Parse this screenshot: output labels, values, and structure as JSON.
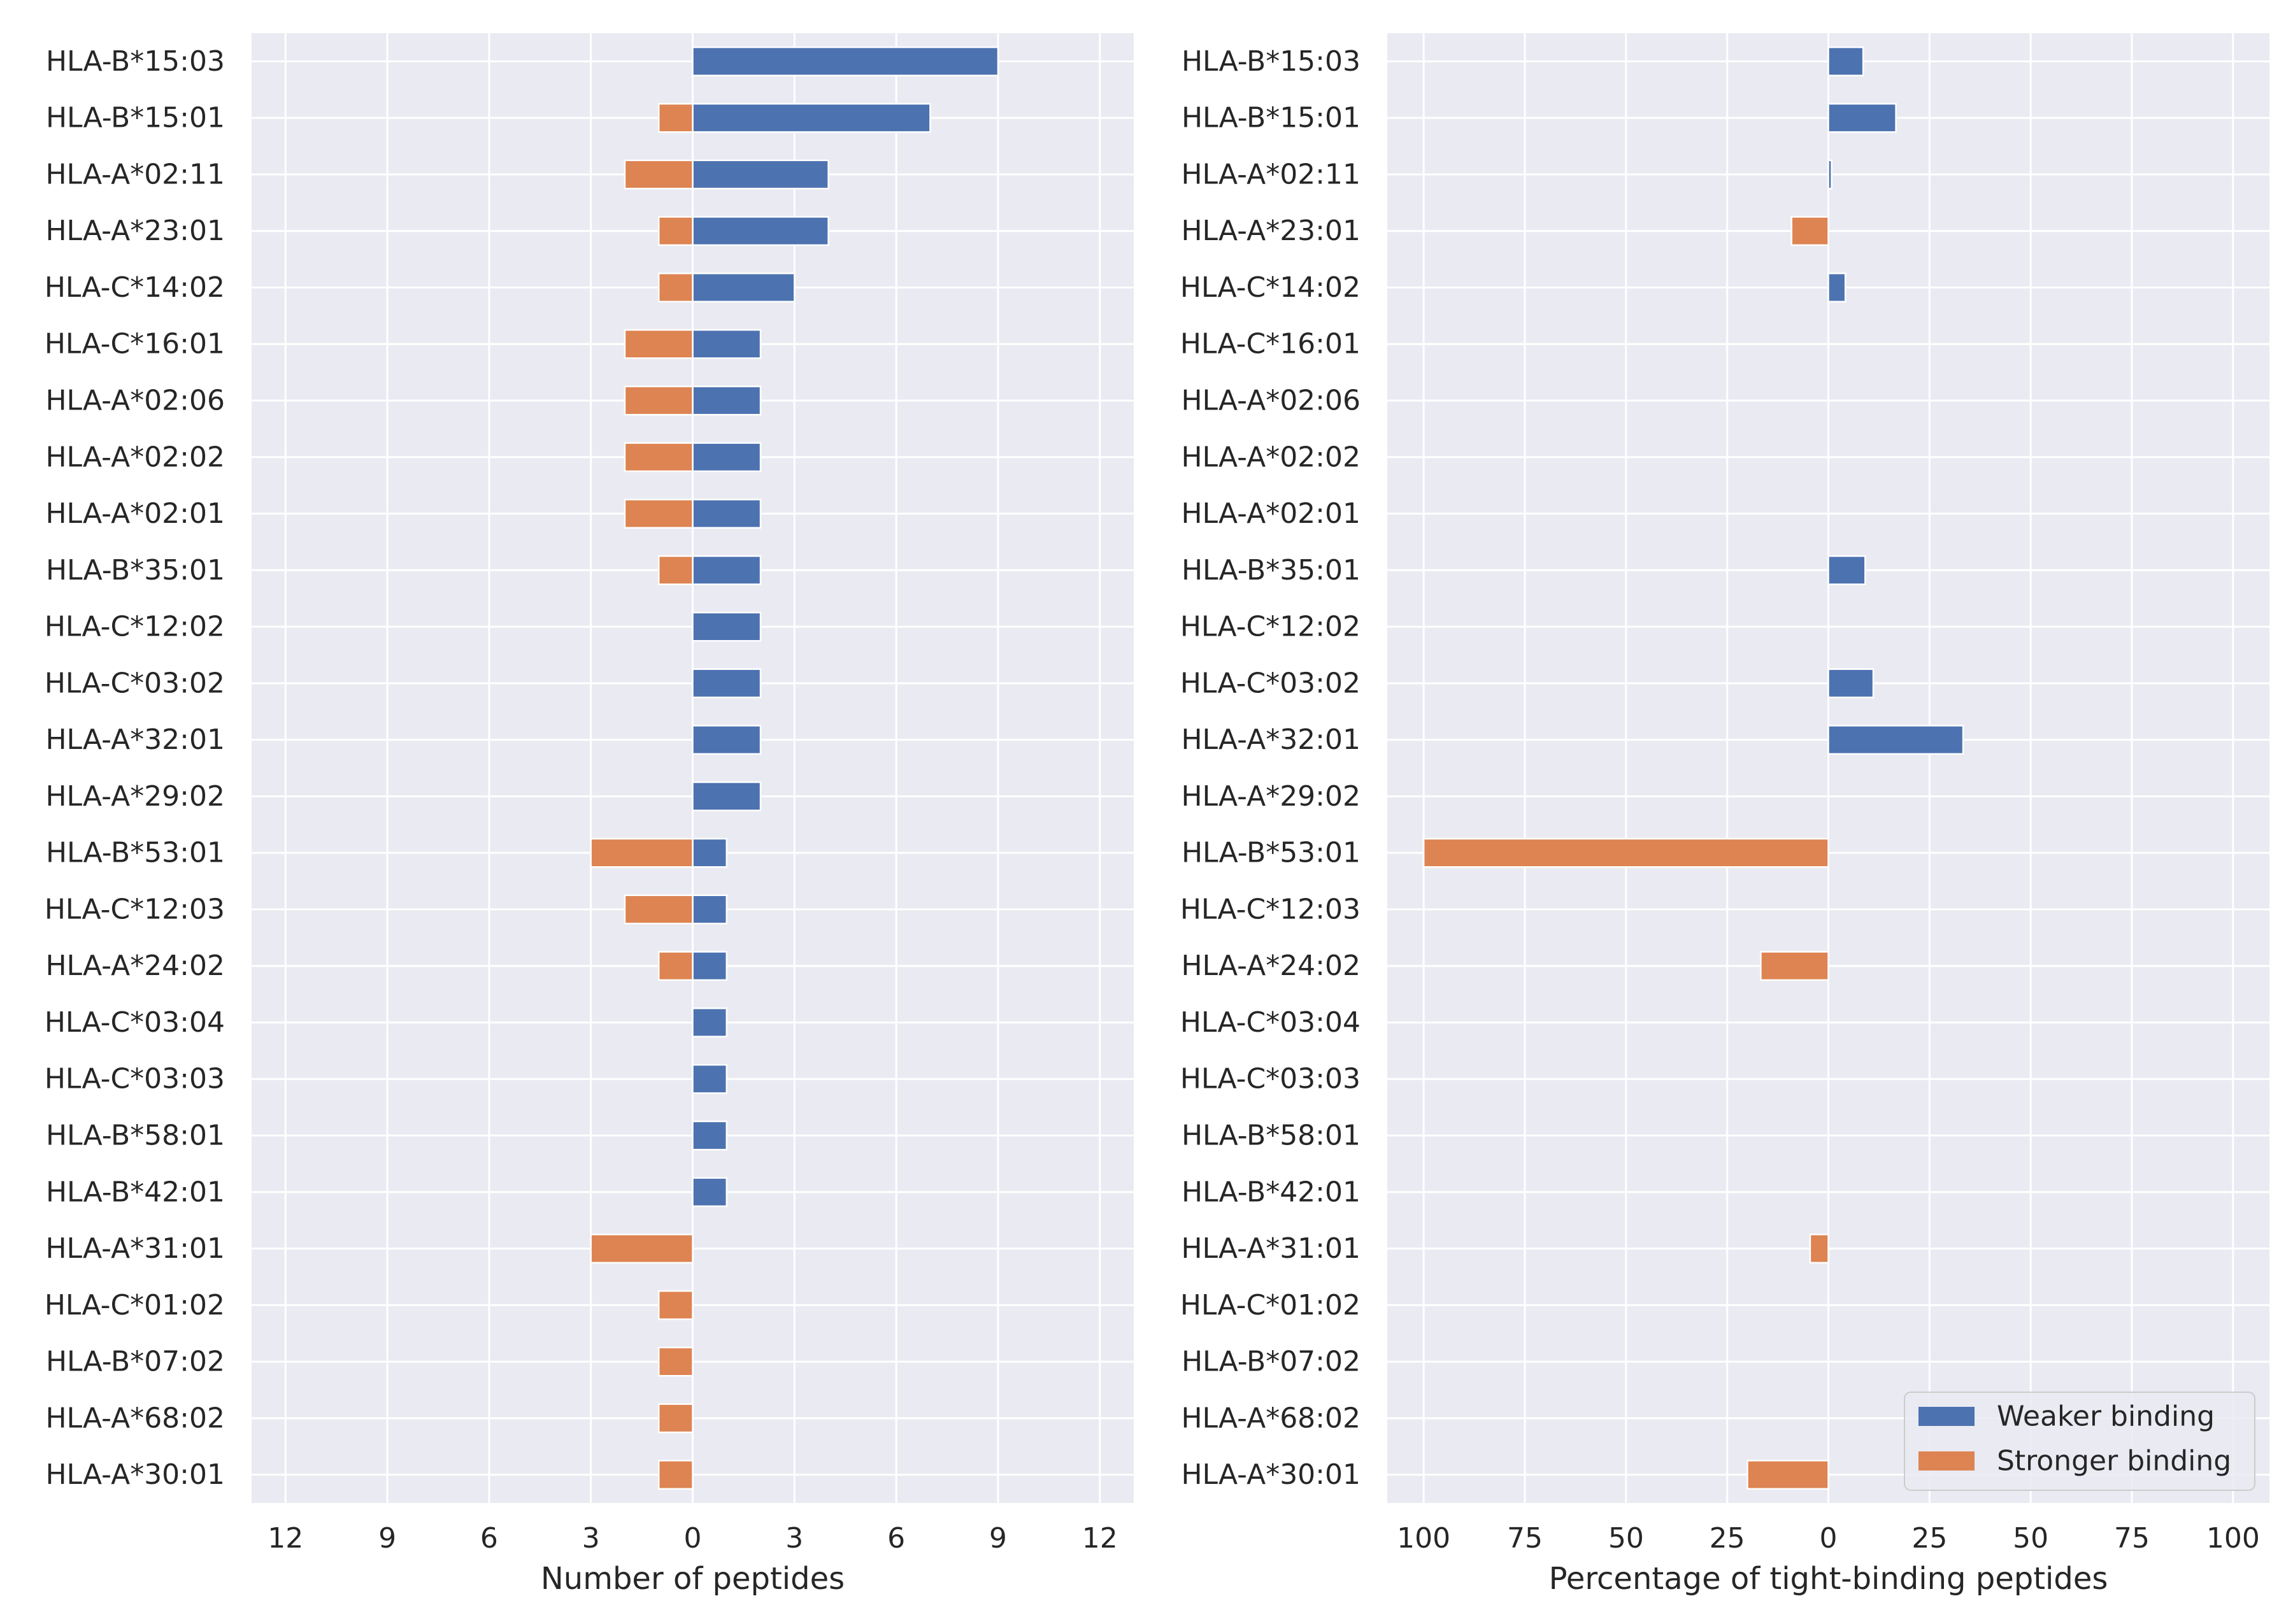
{
  "chart_data": [
    {
      "type": "bar",
      "orientation": "horizontal",
      "title": "",
      "xlabel": "Number of peptides",
      "ylabel": "",
      "xlim": [
        -13,
        13
      ],
      "xticks": [
        -12,
        -9,
        -6,
        -3,
        0,
        3,
        6,
        9,
        12
      ],
      "xtick_labels": [
        "12",
        "9",
        "6",
        "3",
        "0",
        "3",
        "6",
        "9",
        "12"
      ],
      "grid": true,
      "categories": [
        "HLA-B*15:03",
        "HLA-B*15:01",
        "HLA-A*02:11",
        "HLA-A*23:01",
        "HLA-C*14:02",
        "HLA-C*16:01",
        "HLA-A*02:06",
        "HLA-A*02:02",
        "HLA-A*02:01",
        "HLA-B*35:01",
        "HLA-C*12:02",
        "HLA-C*03:02",
        "HLA-A*32:01",
        "HLA-A*29:02",
        "HLA-B*53:01",
        "HLA-C*12:03",
        "HLA-A*24:02",
        "HLA-C*03:04",
        "HLA-C*03:03",
        "HLA-B*58:01",
        "HLA-B*42:01",
        "HLA-A*31:01",
        "HLA-C*01:02",
        "HLA-B*07:02",
        "HLA-A*68:02",
        "HLA-A*30:01"
      ],
      "series": [
        {
          "name": "Weaker binding",
          "color": "#4c72b0",
          "values": [
            9,
            7,
            4,
            4,
            3,
            2,
            2,
            2,
            2,
            2,
            2,
            2,
            2,
            2,
            1,
            1,
            1,
            1,
            1,
            1,
            1,
            0,
            0,
            0,
            0,
            0
          ]
        },
        {
          "name": "Stronger binding",
          "color": "#dd8452",
          "values": [
            0,
            -1,
            -2,
            -1,
            -1,
            -2,
            -2,
            -2,
            -2,
            -1,
            0,
            0,
            0,
            0,
            -3,
            -2,
            -1,
            0,
            0,
            0,
            0,
            -3,
            -1,
            -1,
            -1,
            -1
          ]
        }
      ]
    },
    {
      "type": "bar",
      "orientation": "horizontal",
      "title": "",
      "xlabel": "Percentage of tight-binding peptides",
      "ylabel": "",
      "xlim": [
        -109,
        109
      ],
      "xticks": [
        -100,
        -75,
        -50,
        -25,
        0,
        25,
        50,
        75,
        100
      ],
      "xtick_labels": [
        "100",
        "75",
        "50",
        "25",
        "0",
        "25",
        "50",
        "75",
        "100"
      ],
      "grid": true,
      "legend": "lower-right",
      "categories": [
        "HLA-B*15:03",
        "HLA-B*15:01",
        "HLA-A*02:11",
        "HLA-A*23:01",
        "HLA-C*14:02",
        "HLA-C*16:01",
        "HLA-A*02:06",
        "HLA-A*02:02",
        "HLA-A*02:01",
        "HLA-B*35:01",
        "HLA-C*12:02",
        "HLA-C*03:02",
        "HLA-A*32:01",
        "HLA-A*29:02",
        "HLA-B*53:01",
        "HLA-C*12:03",
        "HLA-A*24:02",
        "HLA-C*03:04",
        "HLA-C*03:03",
        "HLA-B*58:01",
        "HLA-B*42:01",
        "HLA-A*31:01",
        "HLA-C*01:02",
        "HLA-B*07:02",
        "HLA-A*68:02",
        "HLA-A*30:01"
      ],
      "series": [
        {
          "name": "Weaker binding",
          "color": "#4c72b0",
          "values": [
            8.6,
            16.7,
            0.8,
            0,
            4.2,
            0,
            0,
            0,
            0,
            9.1,
            0,
            11.1,
            33.3,
            0,
            0,
            0,
            0,
            0,
            0,
            0,
            0,
            0,
            0,
            0,
            0,
            0
          ]
        },
        {
          "name": "Stronger binding",
          "color": "#dd8452",
          "values": [
            0,
            0,
            0,
            -9.1,
            0,
            0,
            0,
            0,
            0,
            0,
            0,
            0,
            0,
            0,
            -100,
            0,
            -16.7,
            0,
            0,
            0,
            0,
            -4.5,
            0,
            0,
            0,
            -20
          ]
        }
      ]
    }
  ]
}
